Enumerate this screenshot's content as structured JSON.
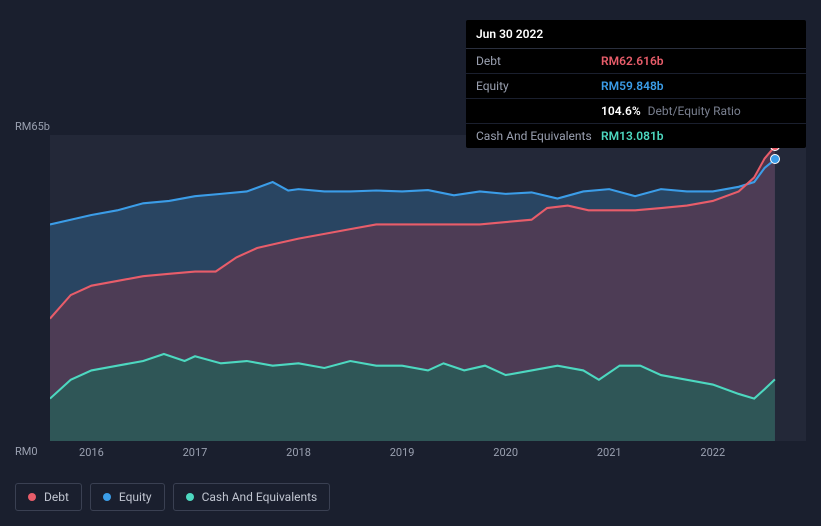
{
  "tooltip": {
    "date": "Jun 30 2022",
    "rows": [
      {
        "label": "Debt",
        "value": "RM62.616b",
        "color": "#e85d6a",
        "extra": ""
      },
      {
        "label": "Equity",
        "value": "RM59.848b",
        "color": "#3b9de8",
        "extra": ""
      },
      {
        "label": "",
        "value": "104.6%",
        "color": "#ffffff",
        "extra": "Debt/Equity Ratio"
      },
      {
        "label": "Cash And Equivalents",
        "value": "RM13.081b",
        "color": "#4dd8c0",
        "extra": ""
      }
    ]
  },
  "chart": {
    "type": "area",
    "background": "#232838",
    "y_top_label": "RM65b",
    "y_bot_label": "RM0",
    "ylim": [
      0,
      65
    ],
    "xlim": [
      2015.6,
      2022.9
    ],
    "x_ticks": [
      2016,
      2017,
      2018,
      2019,
      2020,
      2021,
      2022
    ],
    "series": [
      {
        "name": "Equity",
        "stroke": "#3b9de8",
        "fill": "#2a4a6a",
        "fill_opacity": 0.85,
        "line_width": 2,
        "data": [
          [
            2015.6,
            46
          ],
          [
            2015.8,
            47
          ],
          [
            2016.0,
            48
          ],
          [
            2016.25,
            49
          ],
          [
            2016.5,
            50.5
          ],
          [
            2016.75,
            51
          ],
          [
            2017.0,
            52
          ],
          [
            2017.25,
            52.5
          ],
          [
            2017.5,
            53
          ],
          [
            2017.75,
            55
          ],
          [
            2017.9,
            53.2
          ],
          [
            2018.0,
            53.5
          ],
          [
            2018.25,
            53
          ],
          [
            2018.5,
            53
          ],
          [
            2018.75,
            53.2
          ],
          [
            2019.0,
            53
          ],
          [
            2019.25,
            53.3
          ],
          [
            2019.5,
            52.2
          ],
          [
            2019.75,
            53
          ],
          [
            2020.0,
            52.5
          ],
          [
            2020.25,
            52.8
          ],
          [
            2020.5,
            51.5
          ],
          [
            2020.75,
            53
          ],
          [
            2021.0,
            53.5
          ],
          [
            2021.25,
            52
          ],
          [
            2021.5,
            53.5
          ],
          [
            2021.75,
            53
          ],
          [
            2022.0,
            53
          ],
          [
            2022.25,
            54
          ],
          [
            2022.4,
            55
          ],
          [
            2022.5,
            58
          ],
          [
            2022.6,
            59.8
          ]
        ]
      },
      {
        "name": "Debt",
        "stroke": "#e85d6a",
        "fill": "#5a3a52",
        "fill_opacity": 0.75,
        "line_width": 2,
        "data": [
          [
            2015.6,
            26
          ],
          [
            2015.8,
            31
          ],
          [
            2016.0,
            33
          ],
          [
            2016.25,
            34
          ],
          [
            2016.5,
            35
          ],
          [
            2016.75,
            35.5
          ],
          [
            2017.0,
            36
          ],
          [
            2017.2,
            36
          ],
          [
            2017.4,
            39
          ],
          [
            2017.6,
            41
          ],
          [
            2017.8,
            42
          ],
          [
            2018.0,
            43
          ],
          [
            2018.25,
            44
          ],
          [
            2018.5,
            45
          ],
          [
            2018.75,
            46
          ],
          [
            2019.0,
            46
          ],
          [
            2019.25,
            46
          ],
          [
            2019.5,
            46
          ],
          [
            2019.75,
            46
          ],
          [
            2020.0,
            46.5
          ],
          [
            2020.25,
            47
          ],
          [
            2020.4,
            49.5
          ],
          [
            2020.6,
            50
          ],
          [
            2020.8,
            49
          ],
          [
            2021.0,
            49
          ],
          [
            2021.25,
            49
          ],
          [
            2021.5,
            49.5
          ],
          [
            2021.75,
            50
          ],
          [
            2022.0,
            51
          ],
          [
            2022.25,
            53
          ],
          [
            2022.4,
            56
          ],
          [
            2022.5,
            60
          ],
          [
            2022.6,
            62.6
          ]
        ]
      },
      {
        "name": "Cash And Equivalents",
        "stroke": "#4dd8c0",
        "fill": "#2a5a58",
        "fill_opacity": 0.85,
        "line_width": 2,
        "data": [
          [
            2015.6,
            9
          ],
          [
            2015.8,
            13
          ],
          [
            2016.0,
            15
          ],
          [
            2016.25,
            16
          ],
          [
            2016.5,
            17
          ],
          [
            2016.7,
            18.5
          ],
          [
            2016.9,
            17
          ],
          [
            2017.0,
            18
          ],
          [
            2017.25,
            16.5
          ],
          [
            2017.5,
            17
          ],
          [
            2017.75,
            16
          ],
          [
            2018.0,
            16.5
          ],
          [
            2018.25,
            15.5
          ],
          [
            2018.5,
            17
          ],
          [
            2018.75,
            16
          ],
          [
            2019.0,
            16
          ],
          [
            2019.25,
            15
          ],
          [
            2019.4,
            16.5
          ],
          [
            2019.6,
            15
          ],
          [
            2019.8,
            16
          ],
          [
            2020.0,
            14
          ],
          [
            2020.25,
            15
          ],
          [
            2020.5,
            16
          ],
          [
            2020.75,
            15
          ],
          [
            2020.9,
            13
          ],
          [
            2021.1,
            16
          ],
          [
            2021.3,
            16
          ],
          [
            2021.5,
            14
          ],
          [
            2021.75,
            13
          ],
          [
            2022.0,
            12
          ],
          [
            2022.25,
            10
          ],
          [
            2022.4,
            9
          ],
          [
            2022.5,
            11
          ],
          [
            2022.6,
            13.1
          ]
        ]
      }
    ],
    "end_markers": [
      {
        "series": "Debt",
        "color": "#e85d6a",
        "x": 2022.6,
        "y": 62.6
      },
      {
        "series": "Equity",
        "color": "#3b9de8",
        "x": 2022.6,
        "y": 59.8
      }
    ]
  },
  "legend": [
    {
      "label": "Debt",
      "color": "#e85d6a"
    },
    {
      "label": "Equity",
      "color": "#3b9de8"
    },
    {
      "label": "Cash And Equivalents",
      "color": "#4dd8c0"
    }
  ]
}
